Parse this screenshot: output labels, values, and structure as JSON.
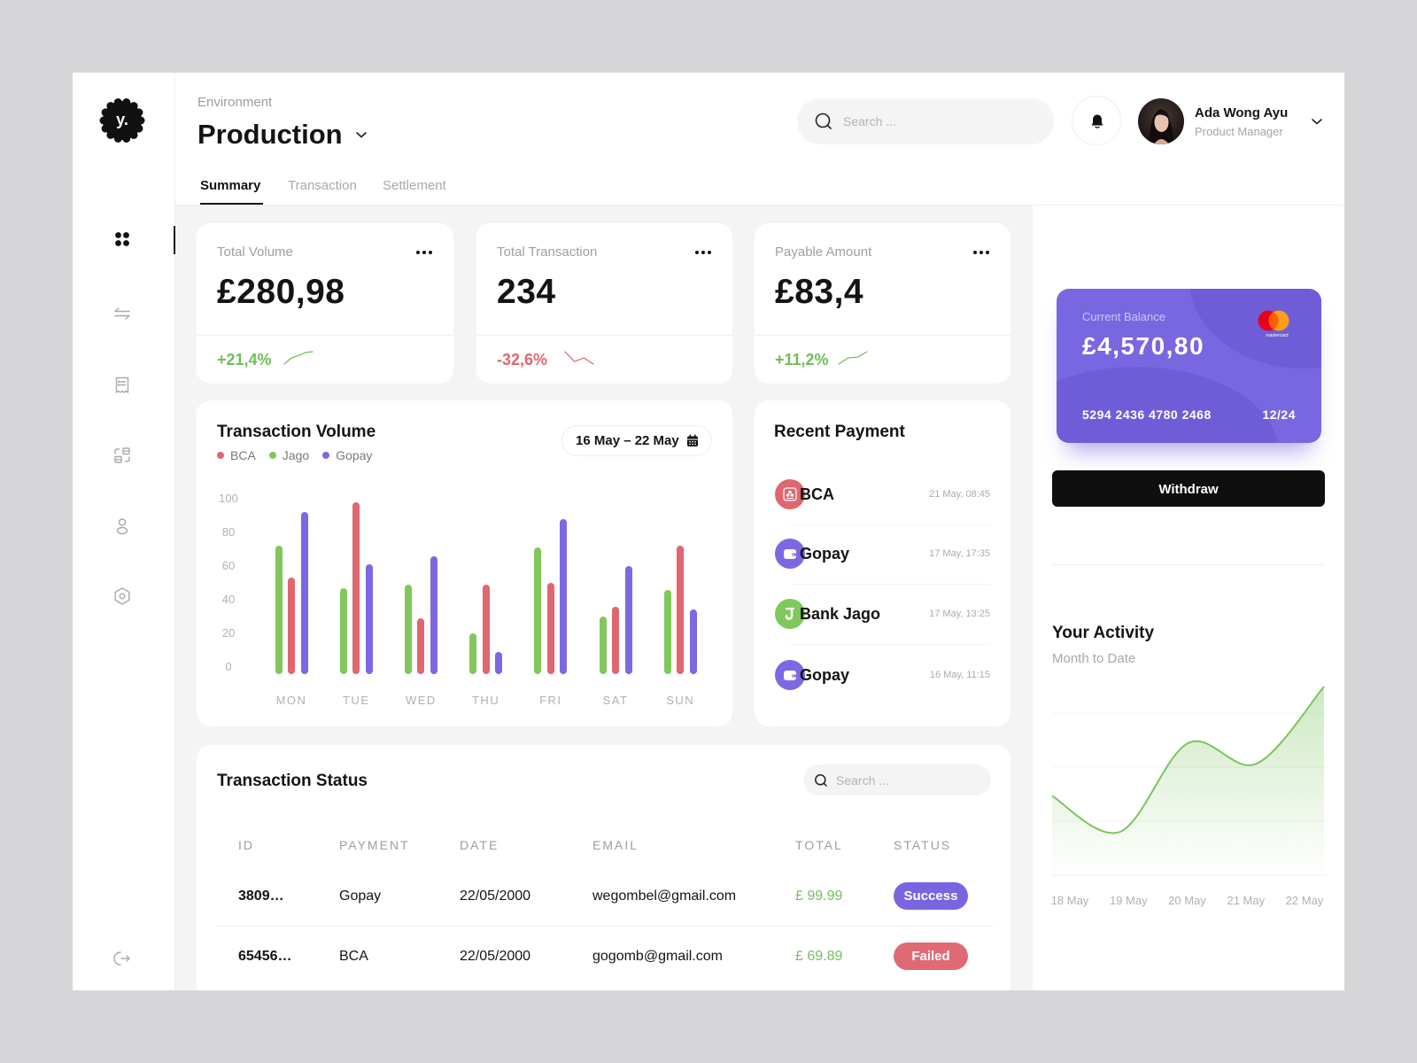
{
  "brand": {
    "logo_text": "y."
  },
  "sidebar": {
    "items": [
      {
        "name": "dashboard",
        "icon": "dashboard-icon",
        "active": true
      },
      {
        "name": "transfer",
        "icon": "transfer-icon",
        "active": false
      },
      {
        "name": "receipt",
        "icon": "receipt-icon",
        "active": false
      },
      {
        "name": "convert",
        "icon": "convert-icon",
        "active": false
      },
      {
        "name": "user",
        "icon": "user-icon",
        "active": false
      },
      {
        "name": "settings",
        "icon": "settings-icon",
        "active": false
      }
    ],
    "logout": {
      "icon": "logout-icon"
    }
  },
  "header": {
    "env_label": "Environment",
    "env_value": "Production",
    "tabs": [
      {
        "label": "Summary",
        "active": true
      },
      {
        "label": "Transaction",
        "active": false
      },
      {
        "label": "Settlement",
        "active": false
      }
    ],
    "search_placeholder": "Search ...",
    "user": {
      "name": "Ada Wong Ayu",
      "role": "Product Manager"
    }
  },
  "colors": {
    "positive": "#6fbd58",
    "negative": "#e0666f",
    "bca": "#e0666f",
    "jago": "#82c75c",
    "gopay": "#7b69e3",
    "card": "#7867e0",
    "success": "#7866e0",
    "failed": "#e06a73"
  },
  "stats": [
    {
      "label": "Total Volume",
      "value": "£280,98",
      "change": "+21,4%",
      "trend": "up",
      "sparkline": [
        0,
        8,
        11,
        15,
        16
      ]
    },
    {
      "label": "Total Transaction",
      "value": "234",
      "change": "-32,6%",
      "trend": "down",
      "sparkline": [
        12,
        4,
        7,
        2
      ]
    },
    {
      "label": "Payable Amount",
      "value": "£83,4",
      "change": "+11,2%",
      "trend": "up",
      "sparkline": [
        0,
        9,
        10,
        18
      ]
    }
  ],
  "transaction_volume": {
    "title": "Transaction Volume",
    "date_range": "16 May – 22 May",
    "legend": [
      {
        "label": "BCA",
        "color": "#e0666f"
      },
      {
        "label": "Jago",
        "color": "#82c75c"
      },
      {
        "label": "Gopay",
        "color": "#7b69e3"
      }
    ]
  },
  "recent_payment": {
    "title": "Recent Payment",
    "items": [
      {
        "name": "BCA",
        "time": "21 May, 08:45",
        "icon": "bca-icon",
        "color": "#e0666f"
      },
      {
        "name": "Gopay",
        "time": "17 May, 17:35",
        "icon": "wallet-icon",
        "color": "#7b69e3"
      },
      {
        "name": "Bank Jago",
        "time": "17 May, 13:25",
        "icon": "jago-icon",
        "color": "#82c75c"
      },
      {
        "name": "Gopay",
        "time": "16 May, 11:15",
        "icon": "wallet-icon",
        "color": "#7b69e3"
      }
    ]
  },
  "transaction_status": {
    "title": "Transaction Status",
    "search_placeholder": "Search ...",
    "columns": [
      "ID",
      "PAYMENT",
      "DATE",
      "EMAIL",
      "TOTAL",
      "STATUS"
    ],
    "rows": [
      {
        "id": "3809…",
        "payment": "Gopay",
        "date": "22/05/2000",
        "email": "wegombel@gmail.com",
        "total": "£ 99.99",
        "status": "Success"
      },
      {
        "id": "65456…",
        "payment": "BCA",
        "date": "22/05/2000",
        "email": "gogomb@gmail.com",
        "total": "£ 69.89",
        "status": "Failed"
      }
    ]
  },
  "balance_card": {
    "label": "Current Balance",
    "balance": "£4,570,80",
    "number": "5294 2436 4780 2468",
    "expiry": "12/24",
    "brand": "mastercard"
  },
  "withdraw_label": "Withdraw",
  "activity": {
    "title": "Your Activity",
    "subtitle": "Month to Date"
  },
  "chart_data": [
    {
      "type": "bar",
      "title": "Transaction Volume",
      "subtitle": "16 May – 22 May",
      "categories": [
        "MON",
        "TUE",
        "WED",
        "THU",
        "FRI",
        "SAT",
        "SUN"
      ],
      "series": [
        {
          "name": "BCA",
          "color": "#e0666f",
          "values": [
            53,
            98,
            29,
            49,
            50,
            36,
            72
          ]
        },
        {
          "name": "Jago",
          "color": "#82c75c",
          "values": [
            72,
            47,
            49,
            20,
            71,
            30,
            46
          ]
        },
        {
          "name": "Gopay",
          "color": "#7b69e3",
          "values": [
            92,
            61,
            66,
            9,
            88,
            60,
            34
          ]
        }
      ],
      "xlabel": "",
      "ylabel": "",
      "ylim": [
        0,
        100
      ],
      "yticks": [
        0,
        20,
        40,
        60,
        80,
        100
      ],
      "grid": false,
      "legend_position": "top-left"
    },
    {
      "type": "area",
      "title": "Your Activity",
      "subtitle": "Month to Date",
      "categories": [
        "18 May",
        "19 May",
        "20 May",
        "21 May",
        "22 May"
      ],
      "values": [
        42,
        23,
        70,
        59,
        100
      ],
      "xlabel": "",
      "ylabel": "",
      "ylim": [
        0,
        100
      ],
      "color": "#7cc45e",
      "grid": true
    }
  ]
}
